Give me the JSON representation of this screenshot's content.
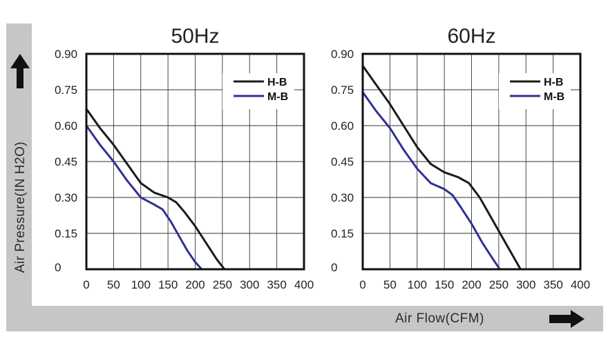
{
  "axes": {
    "ylabel": "Air Pressure(IN H2O)",
    "xlabel": "Air Flow(CFM)"
  },
  "chart_data": [
    {
      "type": "line",
      "title": "50Hz",
      "xlim": [
        0,
        400
      ],
      "ylim": [
        0,
        0.9
      ],
      "xticks": [
        "0",
        "50",
        "100",
        "150",
        "200",
        "250",
        "300",
        "350",
        "400"
      ],
      "yticks": [
        "0",
        "0.15",
        "0.30",
        "0.45",
        "0.60",
        "0.75",
        "0.90"
      ],
      "grid": true,
      "legend": "top-right",
      "series": [
        {
          "name": "H-B",
          "color": "#1a1a1a",
          "x": [
            0,
            25,
            50,
            75,
            100,
            125,
            150,
            165,
            180,
            200,
            220,
            240,
            254
          ],
          "y": [
            0.67,
            0.59,
            0.52,
            0.44,
            0.36,
            0.32,
            0.3,
            0.28,
            0.24,
            0.18,
            0.11,
            0.04,
            0
          ]
        },
        {
          "name": "M-B",
          "color": "#2e3192",
          "x": [
            0,
            25,
            50,
            75,
            100,
            125,
            140,
            155,
            170,
            185,
            200,
            212
          ],
          "y": [
            0.6,
            0.52,
            0.45,
            0.37,
            0.3,
            0.27,
            0.25,
            0.2,
            0.14,
            0.08,
            0.03,
            0
          ]
        }
      ]
    },
    {
      "type": "line",
      "title": "60Hz",
      "xlim": [
        0,
        400
      ],
      "ylim": [
        0,
        0.9
      ],
      "xticks": [
        "0",
        "50",
        "100",
        "150",
        "200",
        "250",
        "300",
        "350",
        "400"
      ],
      "yticks": [
        "0",
        "0.15",
        "0.30",
        "0.45",
        "0.60",
        "0.75",
        "0.90"
      ],
      "grid": true,
      "legend": "top-right",
      "series": [
        {
          "name": "H-B",
          "color": "#1a1a1a",
          "x": [
            0,
            25,
            50,
            75,
            100,
            125,
            150,
            175,
            195,
            215,
            235,
            255,
            275,
            290
          ],
          "y": [
            0.85,
            0.77,
            0.69,
            0.6,
            0.51,
            0.44,
            0.405,
            0.385,
            0.36,
            0.3,
            0.22,
            0.14,
            0.06,
            0
          ]
        },
        {
          "name": "M-B",
          "color": "#2e3192",
          "x": [
            0,
            25,
            50,
            75,
            100,
            125,
            150,
            165,
            180,
            200,
            220,
            240,
            252
          ],
          "y": [
            0.74,
            0.66,
            0.59,
            0.5,
            0.42,
            0.36,
            0.335,
            0.31,
            0.26,
            0.19,
            0.11,
            0.04,
            0
          ]
        }
      ]
    }
  ]
}
